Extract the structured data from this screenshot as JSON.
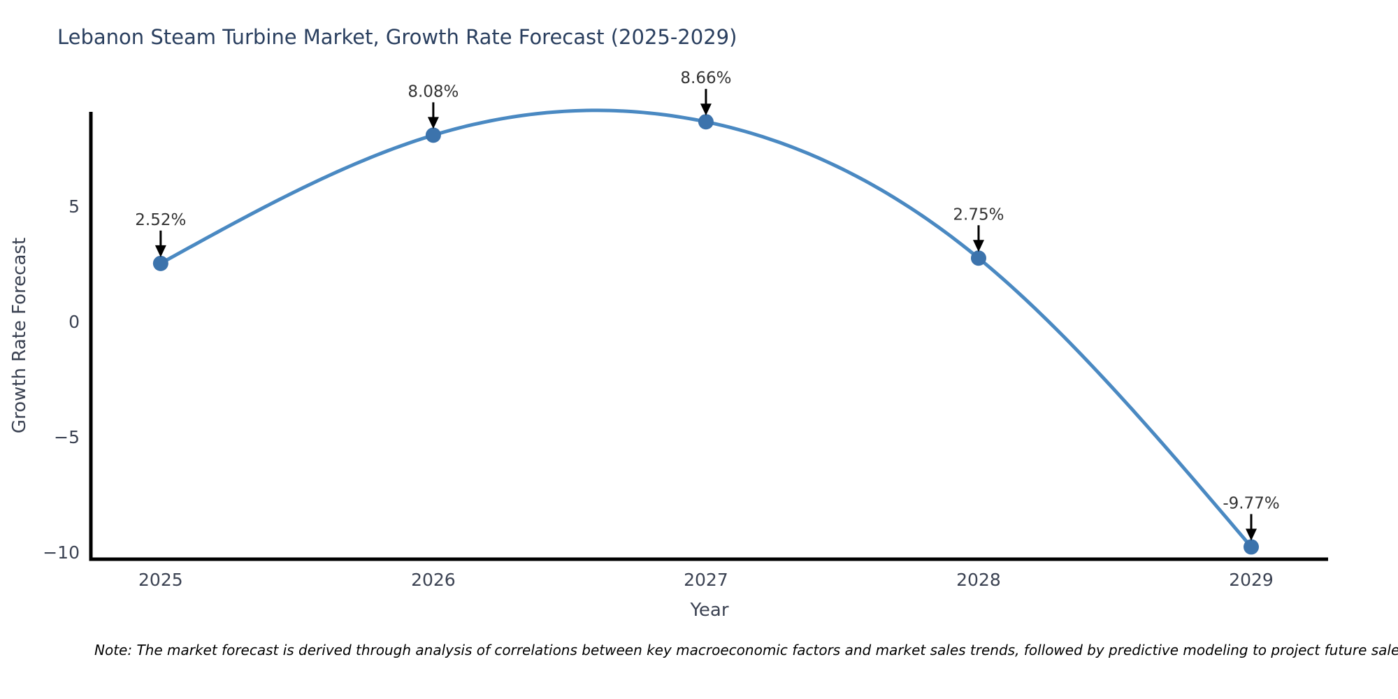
{
  "title": "Lebanon Steam Turbine Market, Growth Rate Forecast (2025-2029)",
  "note": "Note: The market forecast is derived through analysis of correlations between key macroeconomic factors and market sales trends, followed by predictive modeling to project future sales.",
  "chart_data": {
    "type": "line",
    "title": "Lebanon Steam Turbine Market, Growth Rate Forecast (2025-2029)",
    "xlabel": "Year",
    "ylabel": "Growth Rate Forecast",
    "x": [
      2025,
      2026,
      2027,
      2028,
      2029
    ],
    "values": [
      2.52,
      8.08,
      8.66,
      2.75,
      -9.77
    ],
    "point_labels": [
      "2.52%",
      "8.08%",
      "8.66%",
      "2.75%",
      "-9.77%"
    ],
    "xtick_labels": [
      "2025",
      "2026",
      "2027",
      "2028",
      "2029"
    ],
    "yticks": [
      5,
      0,
      -5,
      -10
    ],
    "ytick_labels": [
      "5",
      "0",
      "−5",
      "−10"
    ],
    "xlim": [
      2024.744,
      2029.282
    ],
    "ylim": [
      -10.303,
      9.091
    ],
    "grid": false,
    "legend_position": "none",
    "smooth_spline": true,
    "colors": {
      "line": "#4a89c2",
      "marker": "#3c73ac",
      "axis": "#000000",
      "tick_text": "#3b4252",
      "point_label_text": "#333333",
      "title_text": "#2a3f5f",
      "annotation_arrow": "#000000",
      "background": "#ffffff"
    }
  }
}
